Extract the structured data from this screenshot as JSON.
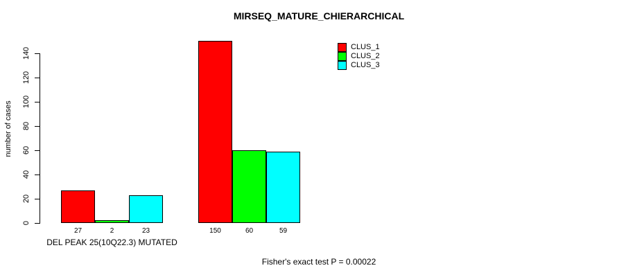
{
  "chart_data": {
    "type": "bar",
    "title": "MIRSEQ_MATURE_CHIERARCHICAL",
    "ylabel": "number of cases",
    "footer": "Fisher's exact test P = 0.00022",
    "ylim": [
      0,
      140
    ],
    "yticks": [
      0,
      20,
      40,
      60,
      80,
      100,
      120,
      140
    ],
    "grid": false,
    "legend_position": "top-right-inside",
    "categories": [
      "DEL PEAK 25(10Q22.3) MUTATED",
      ""
    ],
    "series": [
      {
        "name": "CLUS_1",
        "color": "#FF0000",
        "values": [
          27,
          150
        ]
      },
      {
        "name": "CLUS_2",
        "color": "#00FF00",
        "values": [
          2,
          60
        ]
      },
      {
        "name": "CLUS_3",
        "color": "#00FFFF",
        "values": [
          23,
          59
        ]
      }
    ],
    "bar_value_labels": [
      [
        27,
        2,
        23
      ],
      [
        150,
        60,
        59
      ]
    ],
    "colors": {
      "background": "#FFFFFF",
      "bar_border": "#000000",
      "text": "#000000"
    }
  }
}
